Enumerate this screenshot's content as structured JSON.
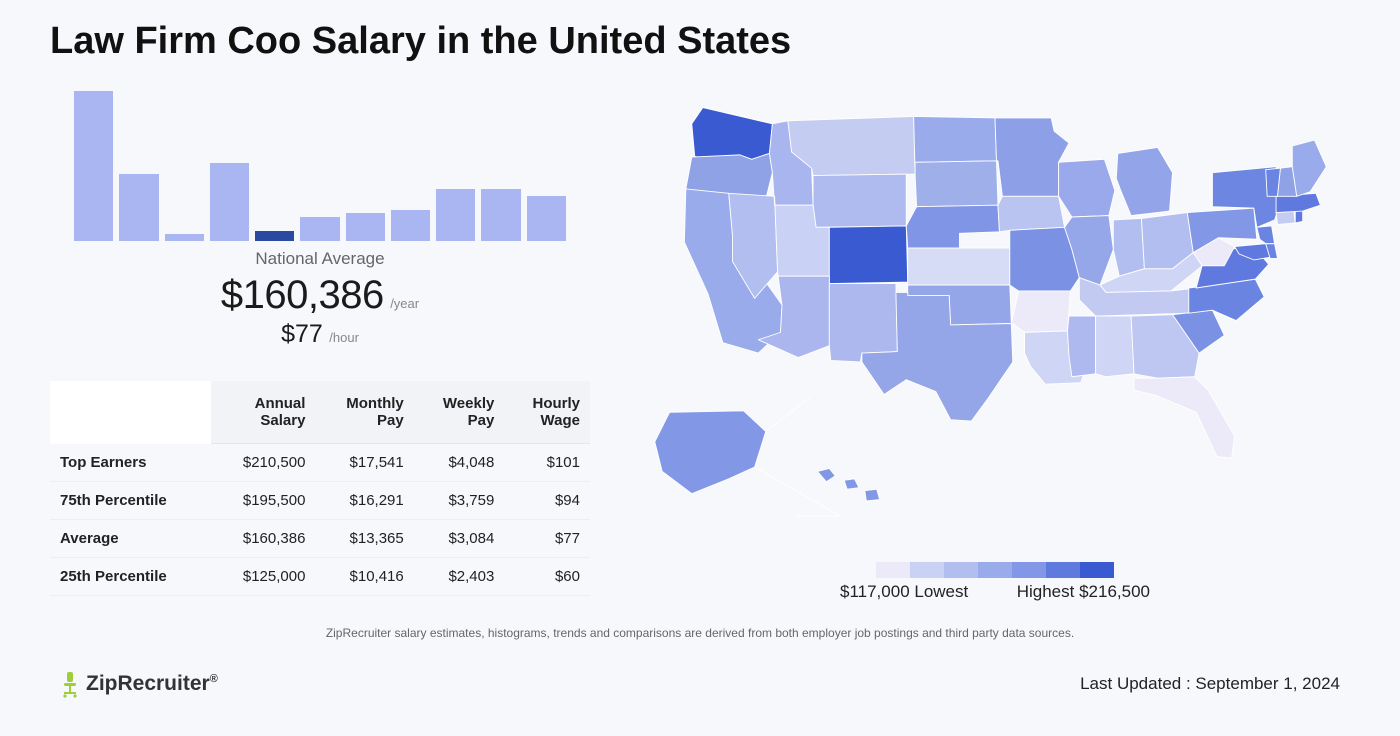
{
  "title": "Law Firm Coo Salary in the United States",
  "histogram": {
    "type": "histogram",
    "bar_heights_pct": [
      100,
      45,
      5,
      52,
      6.5,
      16,
      19,
      21,
      35,
      35,
      30
    ],
    "normal_color": "#aab6f2",
    "highlight_color": "#294aa0",
    "highlight_index": 4,
    "caption": "National Average",
    "annual_value": "$160,386",
    "annual_suffix": "/year",
    "hourly_value": "$77",
    "hourly_suffix": "/hour"
  },
  "salary_table": {
    "columns": [
      "",
      "Annual Salary",
      "Monthly Pay",
      "Weekly Pay",
      "Hourly Wage"
    ],
    "rows": [
      [
        "Top Earners",
        "$210,500",
        "$17,541",
        "$4,048",
        "$101"
      ],
      [
        "75th Percentile",
        "$195,500",
        "$16,291",
        "$3,759",
        "$94"
      ],
      [
        "Average",
        "$160,386",
        "$13,365",
        "$3,084",
        "$77"
      ],
      [
        "25th Percentile",
        "$125,000",
        "$10,416",
        "$2,403",
        "$60"
      ]
    ]
  },
  "map": {
    "type": "choropleth-us",
    "stroke": "#ffffff",
    "legend_colors": [
      "#eceaf8",
      "#c9d1f4",
      "#b3bef0",
      "#9aabec",
      "#8297e7",
      "#5f7adf",
      "#3a5ad1"
    ],
    "lowest_label": "$117,000 Lowest",
    "highest_label": "Highest $216,500",
    "states": {
      "WA": "#3a5ad1",
      "OR": "#8fa2e6",
      "CA": "#9aabec",
      "NV": "#b2bef0",
      "ID": "#a8b5ee",
      "MT": "#c4ccf2",
      "WY": "#afbbef",
      "UT": "#c9d1f4",
      "CO": "#3a5ad1",
      "AZ": "#aab6ed",
      "NM": "#adb9ee",
      "ND": "#9aabec",
      "SD": "#9fafea",
      "NE": "#8095e6",
      "KS": "#d7dcf6",
      "OK": "#94a5e8",
      "TX": "#94a5e8",
      "MN": "#8da0e7",
      "IA": "#b9c4f1",
      "MO": "#7b92e4",
      "AR": "#eceaf8",
      "LA": "#cfd5f5",
      "WI": "#9aa9eb",
      "IL": "#96a7e9",
      "MI": "#93a4e8",
      "IN": "#b3bef0",
      "OH": "#b2bef0",
      "KY": "#cfd5f5",
      "TN": "#c2caf2",
      "MS": "#aeb9ef",
      "AL": "#cfd5f5",
      "GA": "#bec7f1",
      "FL": "#eceaf8",
      "SC": "#7b92e4",
      "NC": "#6a84e1",
      "VA": "#6079df",
      "WV": "#eceaf8",
      "MD": "#6079df",
      "DE": "#6a84e1",
      "PA": "#8297e6",
      "NJ": "#6a84e1",
      "NY": "#6c86e1",
      "CT": "#c4ccf2",
      "RI": "#6079df",
      "MA": "#6079df",
      "VT": "#6a84e1",
      "NH": "#8fa2e6",
      "ME": "#9aabec",
      "AK": "#8297e6",
      "HI": "#8297e6"
    }
  },
  "disclaimer": "ZipRecruiter salary estimates, histograms, trends and comparisons are derived from both employer job postings and third party data sources.",
  "brand": "ZipRecruiter",
  "updated": "Last Updated : September 1, 2024"
}
